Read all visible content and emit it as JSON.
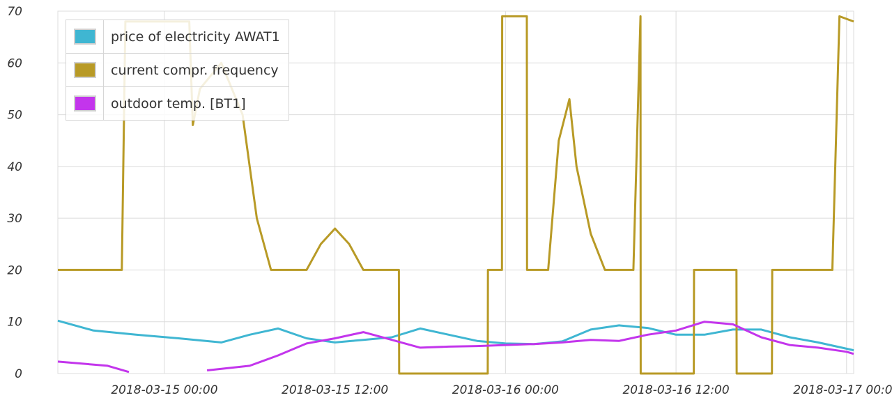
{
  "chart_data": {
    "type": "line",
    "title": "",
    "xlabel": "",
    "ylabel": "",
    "x_range": [
      "2018-03-14 16:30",
      "2018-03-17 00:30"
    ],
    "ylim": [
      0,
      70
    ],
    "yticks": [
      0,
      10,
      20,
      30,
      40,
      50,
      60,
      70
    ],
    "xticks": [
      "2018-03-15 00:00",
      "2018-03-15 12:00",
      "2018-03-16 00:00",
      "2018-03-16 12:00",
      "2018-03-17 00:00"
    ],
    "grid": true,
    "legend_position": "top-left",
    "series": [
      {
        "name": "price of electricity AWAT1",
        "color": "#3fb6d2",
        "x": [
          "2018-03-14 16:30",
          "2018-03-14 19:00",
          "2018-03-14 22:00",
          "2018-03-15 01:00",
          "2018-03-15 04:00",
          "2018-03-15 06:00",
          "2018-03-15 08:00",
          "2018-03-15 10:00",
          "2018-03-15 12:00",
          "2018-03-15 14:00",
          "2018-03-15 16:00",
          "2018-03-15 18:00",
          "2018-03-15 20:00",
          "2018-03-15 22:00",
          "2018-03-16 00:00",
          "2018-03-16 02:00",
          "2018-03-16 04:00",
          "2018-03-16 06:00",
          "2018-03-16 08:00",
          "2018-03-16 10:00",
          "2018-03-16 12:00",
          "2018-03-16 14:00",
          "2018-03-16 16:00",
          "2018-03-16 18:00",
          "2018-03-16 20:00",
          "2018-03-16 22:00",
          "2018-03-17 00:30"
        ],
        "values": [
          10.2,
          8.3,
          7.5,
          6.8,
          6.0,
          7.5,
          8.7,
          6.8,
          6.0,
          6.5,
          7.0,
          8.7,
          7.5,
          6.3,
          5.8,
          5.7,
          6.2,
          8.5,
          9.3,
          8.8,
          7.5,
          7.5,
          8.5,
          8.5,
          7.0,
          6.0,
          4.5
        ]
      },
      {
        "name": "current compr. frequency",
        "color": "#b89a26",
        "x": [
          "2018-03-14 16:30",
          "2018-03-14 21:00",
          "2018-03-14 21:15",
          "2018-03-15 01:45",
          "2018-03-15 02:00",
          "2018-03-15 02:30",
          "2018-03-15 04:00",
          "2018-03-15 05:30",
          "2018-03-15 06:00",
          "2018-03-15 06:30",
          "2018-03-15 07:30",
          "2018-03-15 09:00",
          "2018-03-15 10:00",
          "2018-03-15 11:00",
          "2018-03-15 12:00",
          "2018-03-15 13:00",
          "2018-03-15 14:00",
          "2018-03-15 15:00",
          "2018-03-15 16:30",
          "2018-03-15 16:31",
          "2018-03-15 22:45",
          "2018-03-15 22:46",
          "2018-03-15 23:45",
          "2018-03-15 23:46",
          "2018-03-16 01:30",
          "2018-03-16 01:31",
          "2018-03-16 03:00",
          "2018-03-16 03:45",
          "2018-03-16 04:30",
          "2018-03-16 05:00",
          "2018-03-16 06:00",
          "2018-03-16 07:00",
          "2018-03-16 07:30",
          "2018-03-16 08:15",
          "2018-03-16 09:00",
          "2018-03-16 09:30",
          "2018-03-16 09:31",
          "2018-03-16 13:15",
          "2018-03-16 13:16",
          "2018-03-16 16:15",
          "2018-03-16 16:16",
          "2018-03-16 18:45",
          "2018-03-16 18:46",
          "2018-03-16 20:00",
          "2018-03-16 23:00",
          "2018-03-16 23:30",
          "2018-03-17 00:30"
        ],
        "values": [
          20,
          20,
          68,
          68,
          48,
          55,
          60,
          50,
          40,
          30,
          20,
          20,
          20,
          25,
          28,
          25,
          20,
          20,
          20,
          0,
          0,
          20,
          20,
          69,
          69,
          20,
          20,
          45,
          53,
          40,
          27,
          20,
          20,
          20,
          20,
          69,
          0,
          0,
          20,
          20,
          0,
          0,
          20,
          20,
          20,
          69,
          68
        ]
      },
      {
        "name": "outdoor temp. [BT1]",
        "color": "#c335ec",
        "x": [
          "2018-03-14 16:30",
          "2018-03-14 20:00",
          "2018-03-14 21:30",
          "2018-03-15 03:00",
          "2018-03-15 06:00",
          "2018-03-15 08:00",
          "2018-03-15 10:00",
          "2018-03-15 12:00",
          "2018-03-15 14:00",
          "2018-03-15 16:00",
          "2018-03-15 18:00",
          "2018-03-15 20:00",
          "2018-03-15 22:00",
          "2018-03-16 00:00",
          "2018-03-16 02:00",
          "2018-03-16 04:00",
          "2018-03-16 06:00",
          "2018-03-16 08:00",
          "2018-03-16 10:00",
          "2018-03-16 12:00",
          "2018-03-16 14:00",
          "2018-03-16 16:00",
          "2018-03-16 18:00",
          "2018-03-16 20:00",
          "2018-03-16 22:00",
          "2018-03-17 00:00",
          "2018-03-17 00:30"
        ],
        "values": [
          2.3,
          1.5,
          0.3,
          0.6,
          1.5,
          3.5,
          5.8,
          6.8,
          8.0,
          6.5,
          5.0,
          5.2,
          5.3,
          5.5,
          5.7,
          6.0,
          6.5,
          6.3,
          7.5,
          8.3,
          10.0,
          9.5,
          7.0,
          5.5,
          5.0,
          4.2,
          3.8
        ]
      }
    ]
  }
}
